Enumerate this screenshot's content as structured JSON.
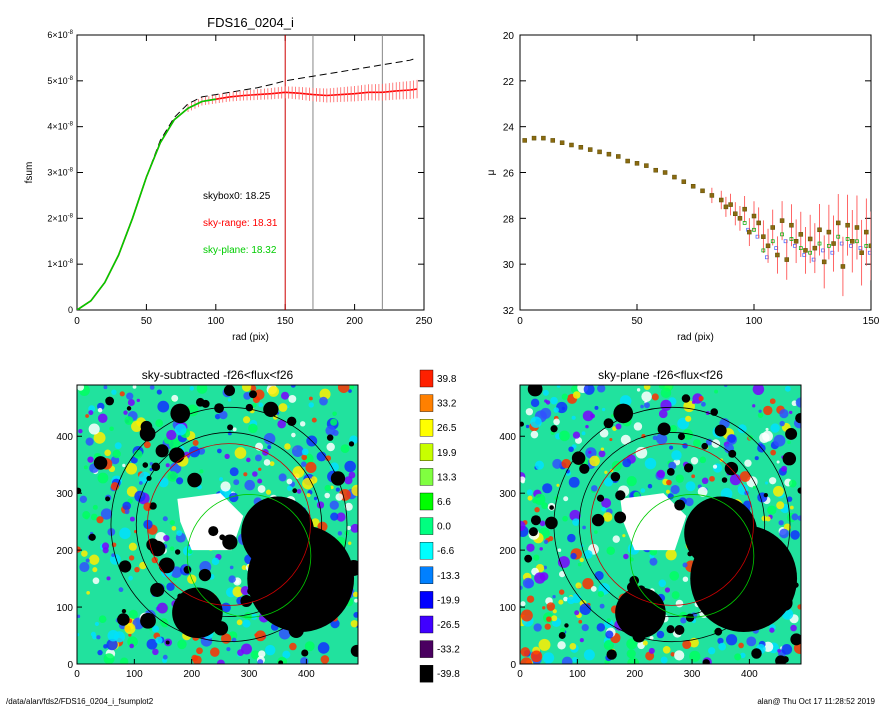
{
  "footer": {
    "path": "/data/alan/fds2/FDS16_0204_i_fsumplot2",
    "user_time": "alan@  Thu Oct 17 11:28:52 2019"
  },
  "colors": {
    "profile_total": "#000000",
    "sky_range": "#ff0000",
    "sky_plane": "#00cc00",
    "vline_red": "#cc0000",
    "vline_gray": "#888888"
  },
  "chart_data": [
    {
      "type": "line",
      "title": "FDS16_0204_i",
      "xlabel": "rad (pix)",
      "ylabel": "fsum",
      "xlim": [
        0,
        250
      ],
      "ylim": [
        0,
        6e-08
      ],
      "xticks": [
        "0",
        "50",
        "100",
        "150",
        "200",
        "250"
      ],
      "yticks": [
        {
          "m": "0",
          "e": ""
        },
        {
          "m": "1×10",
          "e": "-8"
        },
        {
          "m": "2×10",
          "e": "-8"
        },
        {
          "m": "3×10",
          "e": "-8"
        },
        {
          "m": "4×10",
          "e": "-8"
        },
        {
          "m": "5×10",
          "e": "-8"
        },
        {
          "m": "6×10",
          "e": "-8"
        }
      ],
      "annotations": [
        {
          "text": "skybox0: 18.25",
          "color": "#000000"
        },
        {
          "text": "sky-range: 18.31",
          "color": "#ff0000"
        },
        {
          "text": "sky-plane: 18.32",
          "color": "#00cc00"
        }
      ],
      "vlines": [
        {
          "x": 150,
          "color": "#cc0000"
        },
        {
          "x": 170,
          "color": "#888888"
        },
        {
          "x": 220,
          "color": "#888888"
        }
      ],
      "series": [
        {
          "style": "dashed",
          "color": "#000000",
          "x": [
            0,
            10,
            20,
            30,
            40,
            50,
            60,
            70,
            80,
            90,
            100,
            110,
            120,
            130,
            140,
            150,
            160,
            170,
            180,
            190,
            200,
            210,
            220,
            230,
            240,
            245
          ],
          "y": [
            0,
            2e-09,
            6e-09,
            1.2e-08,
            2e-08,
            2.9e-08,
            3.7e-08,
            4.2e-08,
            4.5e-08,
            4.65e-08,
            4.7e-08,
            4.75e-08,
            4.8e-08,
            4.85e-08,
            4.92e-08,
            5e-08,
            5.05e-08,
            5.1e-08,
            5.15e-08,
            5.2e-08,
            5.25e-08,
            5.3e-08,
            5.35e-08,
            5.4e-08,
            5.45e-08,
            5.5e-08
          ]
        },
        {
          "style": "solid",
          "color": "#ff0000",
          "x": [
            0,
            10,
            20,
            30,
            40,
            50,
            60,
            70,
            80,
            90,
            100,
            110,
            120,
            130,
            140,
            150,
            160,
            170,
            180,
            190,
            200,
            210,
            220,
            230,
            240,
            245
          ],
          "y": [
            0,
            2e-09,
            6e-09,
            1.2e-08,
            2e-08,
            2.9e-08,
            3.65e-08,
            4.15e-08,
            4.4e-08,
            4.55e-08,
            4.6e-08,
            4.65e-08,
            4.68e-08,
            4.7e-08,
            4.72e-08,
            4.75e-08,
            4.73e-08,
            4.7e-08,
            4.68e-08,
            4.7e-08,
            4.72e-08,
            4.75e-08,
            4.75e-08,
            4.78e-08,
            4.8e-08,
            4.82e-08
          ]
        },
        {
          "style": "solid",
          "color": "#00cc00",
          "x": [
            0,
            10,
            20,
            30,
            40,
            50,
            60,
            70,
            80,
            90,
            100
          ],
          "y": [
            0,
            2e-09,
            6e-09,
            1.2e-08,
            2e-08,
            2.9e-08,
            3.65e-08,
            4.15e-08,
            4.4e-08,
            4.55e-08,
            4.6e-08
          ]
        }
      ]
    },
    {
      "type": "scatter",
      "title": "",
      "xlabel": "rad (pix)",
      "ylabel": "μ",
      "xlim": [
        0,
        150
      ],
      "ylim": [
        32,
        20
      ],
      "xticks": [
        "0",
        "50",
        "100",
        "150"
      ],
      "yticks": [
        "20",
        "22",
        "24",
        "26",
        "28",
        "30",
        "32"
      ],
      "series": [
        {
          "x": [
            2,
            6,
            10,
            14,
            18,
            22,
            26,
            30,
            34,
            38,
            42,
            46,
            50,
            54,
            58,
            62,
            66,
            70,
            74,
            78,
            82,
            86,
            88,
            90,
            92,
            94,
            96,
            98,
            100,
            102,
            104,
            106,
            108,
            110,
            112,
            114,
            116,
            118,
            120,
            122,
            124,
            126,
            128,
            130,
            132,
            134,
            136,
            138,
            140,
            142,
            144,
            146,
            148,
            150
          ],
          "y": [
            24.6,
            24.5,
            24.5,
            24.6,
            24.7,
            24.8,
            24.9,
            25.0,
            25.1,
            25.2,
            25.3,
            25.5,
            25.6,
            25.7,
            25.9,
            26.0,
            26.2,
            26.4,
            26.6,
            26.8,
            27.0,
            27.2,
            27.5,
            27.4,
            27.8,
            28.0,
            27.6,
            28.6,
            27.9,
            28.2,
            28.8,
            29.2,
            28.4,
            29.6,
            28.1,
            29.8,
            28.3,
            29.0,
            28.7,
            29.4,
            28.9,
            29.3,
            28.5,
            29.9,
            28.6,
            29.1,
            28.2,
            30.1,
            28.3,
            29.0,
            28.4,
            29.5,
            28.6,
            29.2
          ]
        }
      ]
    },
    {
      "type": "heatmap",
      "title": "sky-subtracted -f26<flux<f26",
      "xlim": [
        0,
        490
      ],
      "ylim": [
        0,
        490
      ],
      "xticks": [
        "0",
        "100",
        "200",
        "300",
        "400"
      ],
      "yticks": [
        "0",
        "100",
        "200",
        "300",
        "400"
      ]
    },
    {
      "type": "heatmap",
      "title": "sky-plane -f26<flux<f26",
      "xlim": [
        0,
        490
      ],
      "ylim": [
        0,
        490
      ],
      "xticks": [
        "0",
        "100",
        "200",
        "300",
        "400"
      ],
      "yticks": [
        "0",
        "100",
        "200",
        "300",
        "400"
      ]
    }
  ],
  "colorbar": {
    "labels": [
      "39.8",
      "33.2",
      "26.5",
      "19.9",
      "13.3",
      "6.6",
      "0.0",
      "-6.6",
      "-13.3",
      "-19.9",
      "-26.5",
      "-33.2",
      "-39.8"
    ],
    "colors": [
      "#ff2000",
      "#ff8000",
      "#ffff00",
      "#c8ff00",
      "#80ff40",
      "#00ff00",
      "#00ff80",
      "#00ffff",
      "#0080ff",
      "#0000ff",
      "#4000ff",
      "#4a0060",
      "#000000"
    ]
  }
}
